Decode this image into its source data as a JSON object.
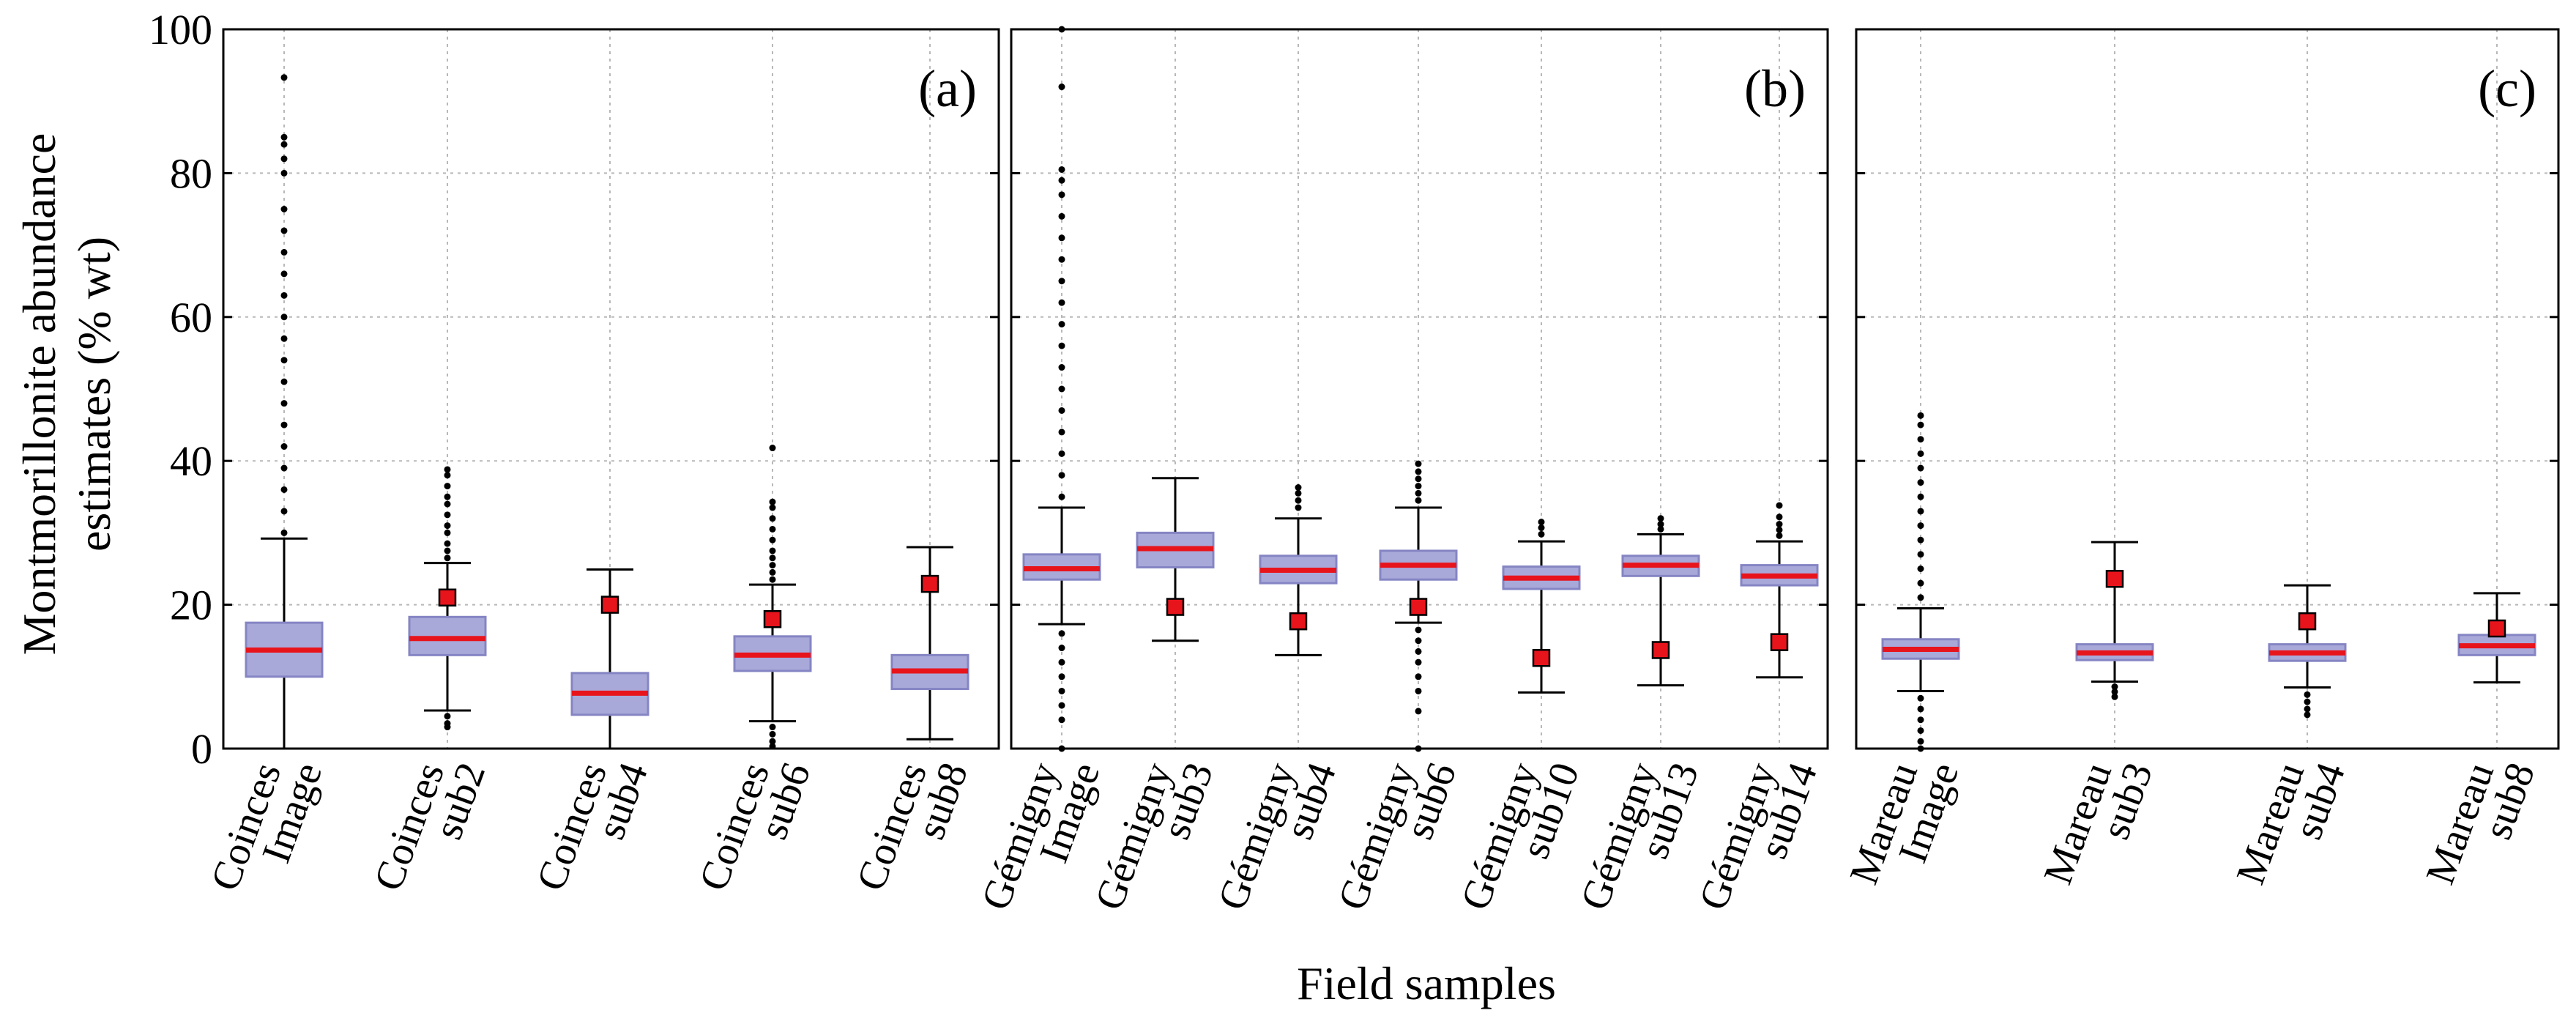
{
  "chart_data": {
    "type": "boxplot",
    "ylabel_line1": "Montmorillonite abundance",
    "ylabel_line2": "estimates  (% wt)",
    "xlabel": "Field samples",
    "ylim": [
      0,
      100
    ],
    "yticks": [
      "0",
      "20",
      "40",
      "60",
      "80",
      "100"
    ],
    "grid": true,
    "colors": {
      "box_fill": "#a9a9d9",
      "box_edge": "#8585c4",
      "median": "#e8141c",
      "marker": "#e8141c",
      "marker_edge": "#000000"
    },
    "panels": [
      {
        "label": "(a)",
        "categories": [
          {
            "line1": "Coinces",
            "line2": "Image",
            "q1": 10,
            "median": 13.7,
            "q3": 17.5,
            "whisker_low": 0,
            "whisker_high": 29.2,
            "outliers_high": [
              30,
              33,
              36,
              39,
              42,
              45,
              48,
              51,
              54,
              57,
              60,
              63,
              66,
              69,
              72,
              75,
              80,
              82,
              84,
              85,
              93.3
            ],
            "outliers_low": [],
            "marker": null
          },
          {
            "line1": "Coinces",
            "line2": "sub2",
            "q1": 13,
            "median": 15.3,
            "q3": 18.3,
            "whisker_low": 5.3,
            "whisker_high": 25.8,
            "outliers_high": [
              26.5,
              27.5,
              28.5,
              30,
              31,
              32.5,
              34,
              35,
              36.5,
              38,
              38.8
            ],
            "outliers_low": [
              4.5,
              3.5,
              3
            ],
            "marker": 21
          },
          {
            "line1": "Coinces",
            "line2": "sub4",
            "q1": 4.7,
            "median": 7.7,
            "q3": 10.5,
            "whisker_low": 0,
            "whisker_high": 24.9,
            "outliers_high": [],
            "outliers_low": [],
            "marker": 20
          },
          {
            "line1": "Coinces",
            "line2": "sub6",
            "q1": 10.8,
            "median": 13,
            "q3": 15.6,
            "whisker_low": 3.8,
            "whisker_high": 22.8,
            "outliers_high": [
              23.5,
              24.5,
              25.5,
              26.5,
              27.5,
              29,
              30.5,
              32,
              33.5,
              34.3,
              41.8
            ],
            "outliers_low": [
              3,
              2,
              1,
              0.3
            ],
            "marker": 18
          },
          {
            "line1": "Coinces",
            "line2": "sub8",
            "q1": 8.3,
            "median": 10.8,
            "q3": 13,
            "whisker_low": 1.3,
            "whisker_high": 28,
            "outliers_high": [],
            "outliers_low": [],
            "marker": 22.9
          }
        ]
      },
      {
        "label": "(b)",
        "categories": [
          {
            "line1": "Gémigny",
            "line2": "Image",
            "q1": 23.5,
            "median": 25,
            "q3": 27,
            "whisker_low": 17.3,
            "whisker_high": 33.5,
            "outliers_high": [
              35,
              38,
              41,
              44,
              47,
              50,
              53,
              56,
              59,
              62,
              65,
              68,
              71,
              74,
              77,
              79,
              80.5,
              92,
              100
            ],
            "outliers_low": [
              16,
              14,
              12,
              10,
              8,
              6,
              4,
              0
            ],
            "marker": null
          },
          {
            "line1": "Gémigny",
            "line2": "sub3",
            "q1": 25.2,
            "median": 27.8,
            "q3": 30,
            "whisker_low": 15,
            "whisker_high": 37.6,
            "outliers_high": [],
            "outliers_low": [],
            "marker": 19.7
          },
          {
            "line1": "Gémigny",
            "line2": "sub4",
            "q1": 23,
            "median": 24.8,
            "q3": 26.8,
            "whisker_low": 13,
            "whisker_high": 32,
            "outliers_high": [
              33.5,
              34.5,
              35.5,
              36.3
            ],
            "outliers_low": [],
            "marker": 17.7
          },
          {
            "line1": "Gémigny",
            "line2": "sub6",
            "q1": 23.5,
            "median": 25.5,
            "q3": 27.5,
            "whisker_low": 17.5,
            "whisker_high": 33.5,
            "outliers_high": [
              34.5,
              35.5,
              36.5,
              37.5,
              38.5,
              39.6
            ],
            "outliers_low": [
              16.5,
              15,
              13.5,
              12,
              10,
              8,
              5.2,
              0
            ],
            "marker": 19.7
          },
          {
            "line1": "Gémigny",
            "line2": "sub10",
            "q1": 22.2,
            "median": 23.7,
            "q3": 25.3,
            "whisker_low": 7.8,
            "whisker_high": 28.8,
            "outliers_high": [
              29.8,
              30.7,
              31.5
            ],
            "outliers_low": [],
            "marker": 12.6
          },
          {
            "line1": "Gémigny",
            "line2": "sub13",
            "q1": 24,
            "median": 25.5,
            "q3": 26.8,
            "whisker_low": 8.8,
            "whisker_high": 29.8,
            "outliers_high": [
              30.5,
              31.2,
              32
            ],
            "outliers_low": [],
            "marker": 13.7
          },
          {
            "line1": "Gémigny",
            "line2": "sub14",
            "q1": 22.7,
            "median": 24,
            "q3": 25.5,
            "whisker_low": 9.9,
            "whisker_high": 28.8,
            "outliers_high": [
              29.6,
              30.4,
              31.2,
              32.2,
              33.8
            ],
            "outliers_low": [],
            "marker": 14.8
          }
        ]
      },
      {
        "label": "(c)",
        "categories": [
          {
            "line1": "Mareau",
            "line2": "Image",
            "q1": 12.5,
            "median": 13.8,
            "q3": 15.2,
            "whisker_low": 8,
            "whisker_high": 19.5,
            "outliers_high": [
              21,
              23,
              25,
              27,
              29,
              31,
              33,
              35,
              37,
              39,
              41,
              43,
              45,
              46.3
            ],
            "outliers_low": [
              7,
              5.5,
              4,
              2.5,
              1,
              0
            ],
            "marker": null
          },
          {
            "line1": "Mareau",
            "line2": "sub3",
            "q1": 12.3,
            "median": 13.3,
            "q3": 14.5,
            "whisker_low": 9.3,
            "whisker_high": 28.7,
            "outliers_high": [],
            "outliers_low": [
              8.6,
              7.9,
              7.2
            ],
            "marker": 23.6
          },
          {
            "line1": "Mareau",
            "line2": "sub4",
            "q1": 12.2,
            "median": 13.3,
            "q3": 14.5,
            "whisker_low": 8.5,
            "whisker_high": 22.7,
            "outliers_high": [],
            "outliers_low": [
              7.5,
              6.5,
              5.5,
              4.7
            ],
            "marker": 17.7
          },
          {
            "line1": "Mareau",
            "line2": "sub8",
            "q1": 13,
            "median": 14.3,
            "q3": 15.8,
            "whisker_low": 9.2,
            "whisker_high": 21.6,
            "outliers_high": [],
            "outliers_low": [],
            "marker": 16.7
          }
        ]
      }
    ]
  }
}
